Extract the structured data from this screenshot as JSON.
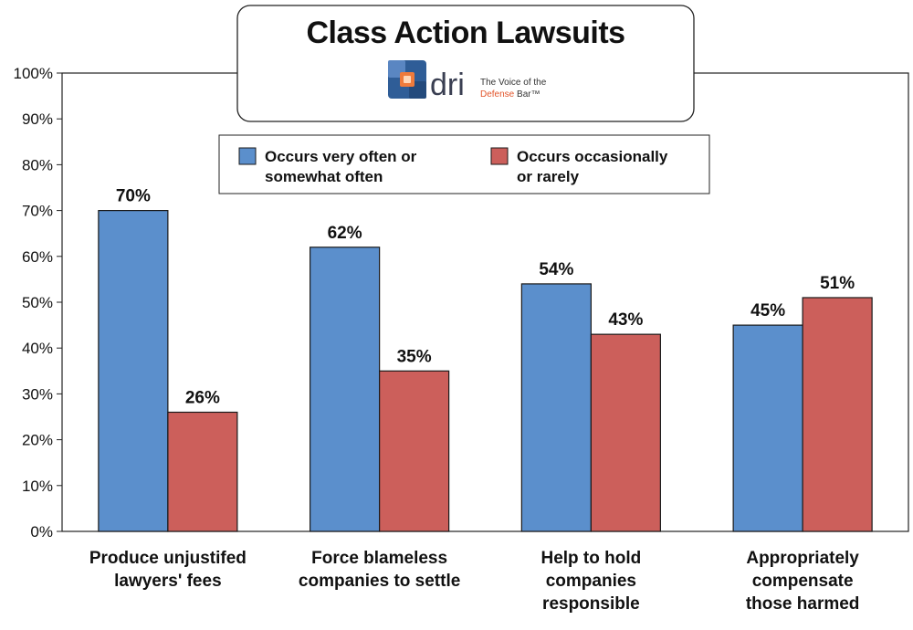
{
  "chart_data": {
    "type": "bar",
    "title": "Class Action Lawsuits",
    "categories": [
      [
        "Produce unjustifed",
        "lawyers' fees"
      ],
      [
        "Force blameless",
        "companies to settle"
      ],
      [
        "Help to hold",
        "companies",
        "responsible"
      ],
      [
        "Appropriately",
        "compensate",
        "those harmed"
      ]
    ],
    "series": [
      {
        "name": [
          "Occurs very often or",
          "somewhat often"
        ],
        "values": [
          70,
          62,
          54,
          45
        ],
        "color": "#5b8fcc"
      },
      {
        "name": [
          "Occurs occasionally",
          "or rarely"
        ],
        "values": [
          26,
          35,
          43,
          51
        ],
        "color": "#cc5f5b"
      }
    ],
    "ylim": [
      0,
      100
    ],
    "yticks": [
      "0%",
      "10%",
      "20%",
      "30%",
      "40%",
      "50%",
      "60%",
      "70%",
      "80%",
      "90%",
      "100%"
    ],
    "value_suffix": "%",
    "legend_position": "top-center",
    "grid": false
  },
  "branding": {
    "logo_word": "dri",
    "tagline_line1": "The Voice of the",
    "tagline_accent": "Defense",
    "tagline_rest": " Bar™"
  }
}
